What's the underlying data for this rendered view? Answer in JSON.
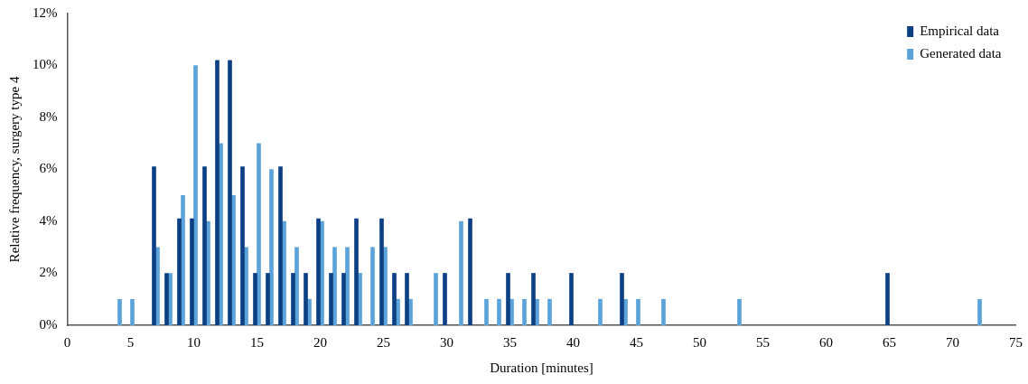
{
  "chart_data": {
    "type": "bar",
    "xlabel": "Duration [minutes]",
    "ylabel": "Relative frequency, surgery type 4",
    "xlim": [
      0,
      75
    ],
    "xticks": [
      0,
      5,
      10,
      15,
      20,
      25,
      30,
      35,
      40,
      45,
      50,
      55,
      60,
      65,
      70,
      75
    ],
    "ylim": [
      0,
      12
    ],
    "yticks": [
      {
        "value": 0,
        "label": "0%"
      },
      {
        "value": 2,
        "label": "2%"
      },
      {
        "value": 4,
        "label": "4%"
      },
      {
        "value": 6,
        "label": "6%"
      },
      {
        "value": 8,
        "label": "8%"
      },
      {
        "value": 10,
        "label": "10%"
      },
      {
        "value": 12,
        "label": "12%"
      }
    ],
    "grid": false,
    "legend": "top right",
    "series": [
      {
        "name": "Empirical data",
        "color": "#0d3f85",
        "x": [
          7,
          8,
          9,
          10,
          11,
          12,
          13,
          14,
          15,
          16,
          17,
          18,
          19,
          20,
          21,
          22,
          23,
          25,
          26,
          27,
          30,
          32,
          35,
          37,
          40,
          44,
          65
        ],
        "values": [
          6.1,
          2.0,
          4.1,
          4.1,
          6.1,
          10.2,
          10.2,
          6.1,
          2.0,
          2.0,
          6.1,
          2.0,
          2.0,
          4.1,
          2.0,
          2.0,
          4.1,
          4.1,
          2.0,
          2.0,
          2.0,
          4.1,
          2.0,
          2.0,
          2.0,
          2.0,
          2.0
        ]
      },
      {
        "name": "Generated data",
        "color": "#5ba3d9",
        "x": [
          4,
          5,
          7,
          8,
          9,
          10,
          11,
          12,
          13,
          14,
          15,
          16,
          17,
          18,
          19,
          20,
          21,
          22,
          23,
          24,
          25,
          26,
          27,
          29,
          31,
          33,
          34,
          35,
          36,
          37,
          38,
          42,
          44,
          45,
          47,
          53,
          72
        ],
        "values": [
          1,
          1,
          3,
          2,
          5,
          10,
          4,
          7,
          5,
          3,
          7,
          6,
          4,
          3,
          1,
          4,
          3,
          3,
          2,
          3,
          3,
          1,
          1,
          2,
          4,
          1,
          1,
          1,
          1,
          1,
          1,
          1,
          1,
          1,
          1,
          1,
          1
        ]
      }
    ]
  }
}
